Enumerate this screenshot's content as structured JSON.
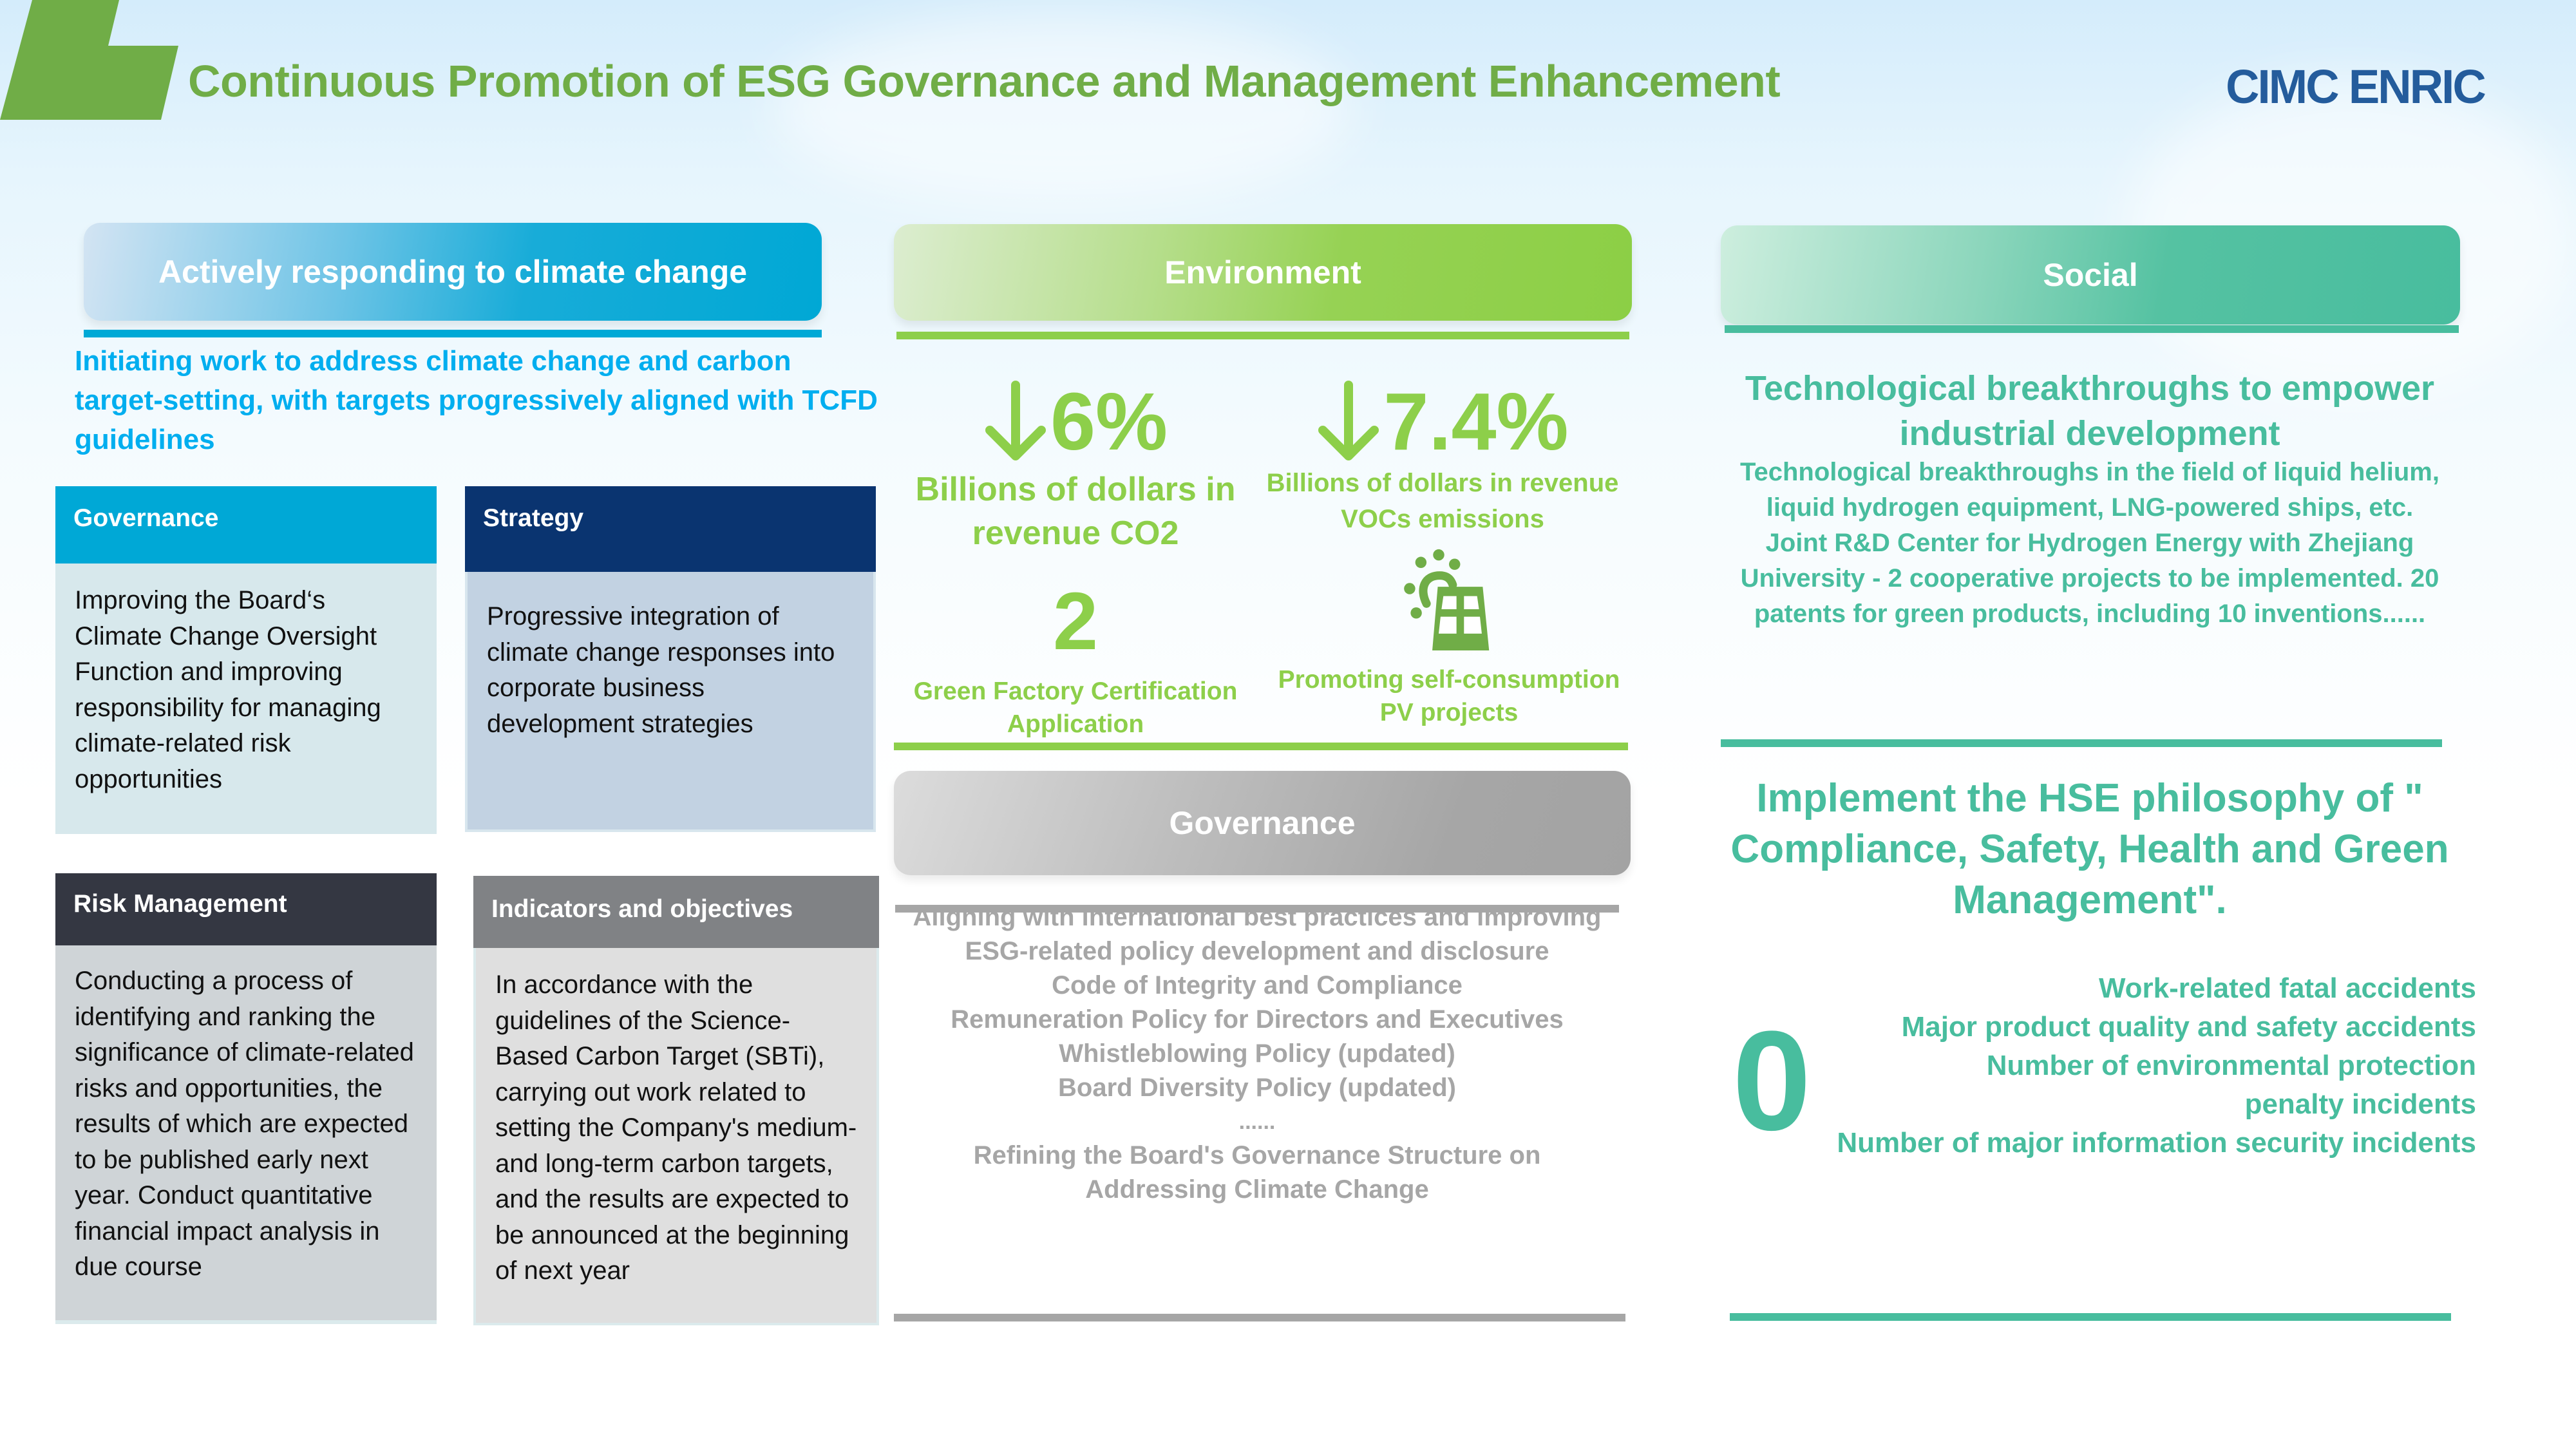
{
  "header": {
    "title": "Continuous Promotion of ESG Governance and Management Enhancement",
    "logo_text": "CIMC ENRIC"
  },
  "colors": {
    "accent_green": "#70ad47",
    "env_green": "#8dcf4a",
    "climate_blue": "#00a8d6",
    "social_teal": "#48bd9e",
    "gov_gray": "#a6a6a6",
    "brand_blue": "#245c9c"
  },
  "climate": {
    "heading": "Actively responding to climate change",
    "subtitle": "Initiating work to address climate change and carbon target-setting, with targets progressively aligned with TCFD guidelines",
    "boxes": [
      {
        "title": "Governance",
        "body": "Improving the Board‘s Climate Change Oversight Function and improving responsibility for managing climate-related risk opportunities"
      },
      {
        "title": "Strategy",
        "body": "Progressive integration of climate change responses into corporate business development strategies"
      },
      {
        "title": "Risk Management",
        "body": "Conducting a process of identifying and ranking the significance of climate-related risks and opportunities, the results of which are expected to be published early next year. Conduct quantitative financial impact analysis in due course"
      },
      {
        "title": "Indicators and objectives",
        "body": "In accordance with the guidelines of the Science-Based Carbon Target (SBTi),  carrying out work related to setting the Company's medium- and long-term carbon targets, and the results are expected to be announced at the beginning of next year"
      }
    ]
  },
  "environment": {
    "heading": "Environment",
    "stats": [
      {
        "icon": "arrow-down-icon",
        "value": "6%",
        "label": "Billions of dollars in revenue CO2"
      },
      {
        "icon": "arrow-down-icon",
        "value": "7.4%",
        "label": "Billions of dollars in revenue VOCs emissions"
      },
      {
        "value": "2",
        "label": "Green Factory Certification Application"
      },
      {
        "icon": "solar-panel-icon",
        "label": "Promoting self-consumption PV projects"
      }
    ]
  },
  "governance": {
    "heading": "Governance",
    "items": [
      "Aligning with international best practices and improving ESG-related policy development and disclosure",
      "Code of Integrity and Compliance",
      "Remuneration Policy for Directors and Executives",
      "Whistleblowing Policy (updated)",
      "Board Diversity Policy (updated)",
      "......",
      "Refining the Board's Governance Structure on Addressing Climate Change"
    ]
  },
  "social": {
    "heading": "Social",
    "tech_title": "Technological breakthroughs to empower industrial development",
    "tech_text": "Technological breakthroughs in the field of liquid helium, liquid hydrogen equipment, LNG-powered ships, etc. Joint R&D Center for Hydrogen Energy with Zhejiang University - 2 cooperative projects to be implemented. 20 patents for green products, including 10 inventions......",
    "hse_text": "Implement the HSE philosophy of \" Compliance, Safety, Health and Green Management\".",
    "zero_value": "0",
    "zero_items": [
      "Work-related fatal accidents",
      "Major product quality and safety accidents",
      "Number of environmental protection penalty incidents",
      "Number of major information security incidents"
    ]
  }
}
